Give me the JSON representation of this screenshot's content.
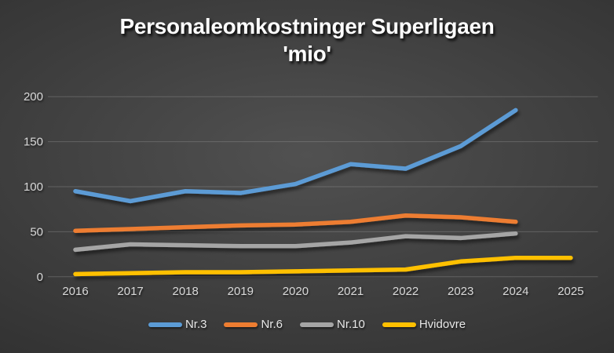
{
  "title": {
    "line1": "Personaleomkostninger Superligaen",
    "line2": "'mio'"
  },
  "chart_data": {
    "type": "line",
    "title": "Personaleomkostninger Superligaen 'mio'",
    "categories": [
      "2016",
      "2017",
      "2018",
      "2019",
      "2020",
      "2021",
      "2022",
      "2023",
      "2024",
      "2025"
    ],
    "series": [
      {
        "name": "Nr.3",
        "color": "#5B9BD5",
        "values": [
          95,
          84,
          95,
          93,
          103,
          125,
          120,
          145,
          185,
          null
        ]
      },
      {
        "name": "Nr.6",
        "color": "#ED7D31",
        "values": [
          51,
          53,
          55,
          57,
          58,
          61,
          68,
          66,
          61,
          null
        ]
      },
      {
        "name": "Nr.10",
        "color": "#A5A5A5",
        "values": [
          30,
          36,
          35,
          34,
          34,
          38,
          45,
          43,
          48,
          null
        ]
      },
      {
        "name": "Hvidovre",
        "color": "#FFC000",
        "values": [
          3,
          4,
          5,
          5,
          6,
          7,
          8,
          17,
          21,
          21
        ]
      }
    ],
    "y_ticks": [
      0,
      50,
      100,
      150,
      200
    ],
    "ylim": [
      0,
      200
    ],
    "grid": true,
    "legend_position": "bottom"
  },
  "style": {
    "title_color": "#fdfdfd",
    "axis_label_color": "#d9d9d9",
    "legend_label_color": "#e8e8e8",
    "background_center": "#515151",
    "background_edge": "#262626",
    "gridline_color": "#a0a0a0"
  }
}
